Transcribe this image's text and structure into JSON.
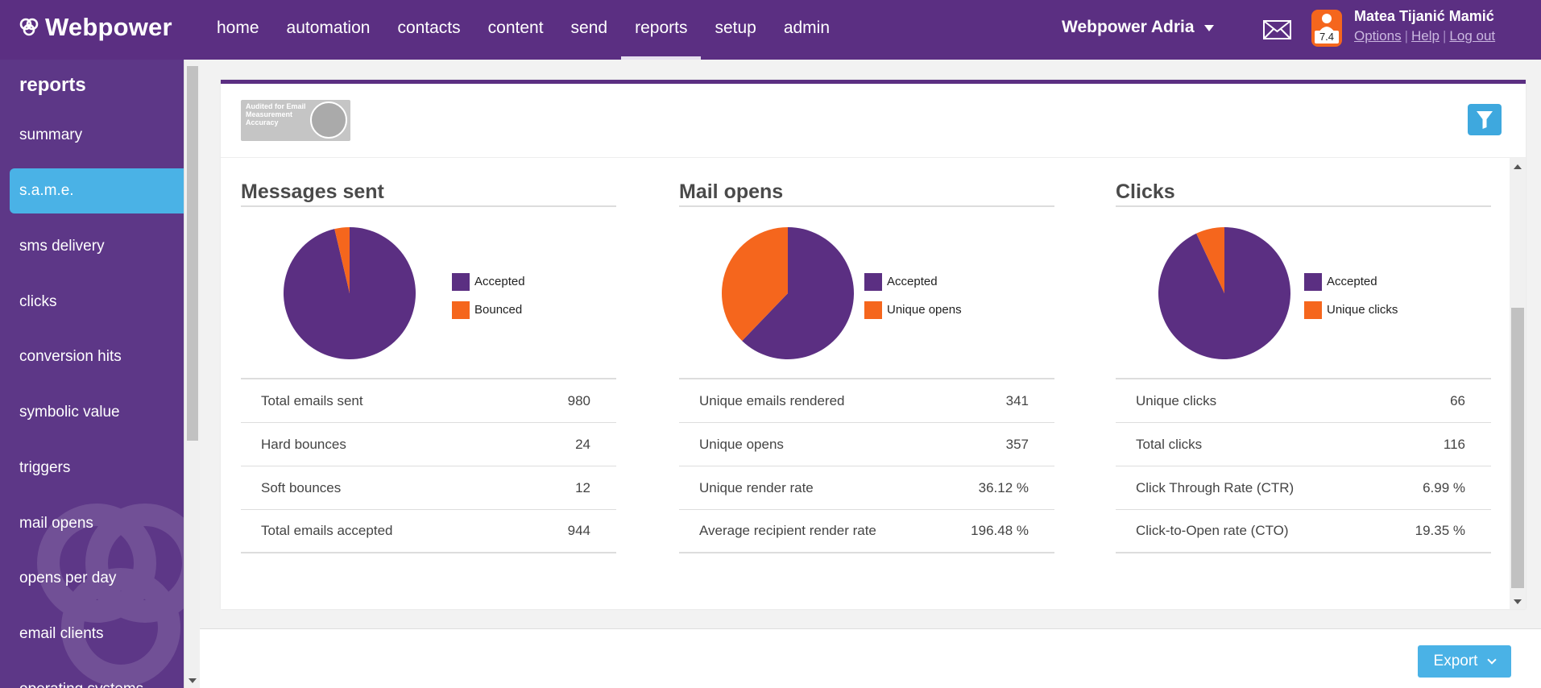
{
  "app": {
    "logo": "Webpower"
  },
  "nav": {
    "items": [
      "home",
      "automation",
      "contacts",
      "content",
      "send",
      "reports",
      "setup",
      "admin"
    ],
    "active": "reports"
  },
  "account": {
    "name": "Webpower Adria"
  },
  "user": {
    "name": "Matea Tijanić Mamić",
    "badge": "7.4",
    "links": [
      "Options",
      "Help",
      "Log out"
    ]
  },
  "sidebar": {
    "title": "reports",
    "items": [
      "summary",
      "s.a.m.e.",
      "sms delivery",
      "clicks",
      "conversion hits",
      "symbolic value",
      "triggers",
      "mail opens",
      "opens per day",
      "email clients",
      "operating systems"
    ],
    "active_index": 1
  },
  "colors": {
    "accepted": "#5b2f82",
    "secondary": "#f5661d",
    "brand": "#5b2f82",
    "accent": "#4ab2e6"
  },
  "panels": [
    {
      "title": "Messages sent",
      "legend": [
        "Accepted",
        "Bounced"
      ],
      "chart_data": {
        "type": "pie",
        "labels": [
          "Accepted",
          "Bounced"
        ],
        "values": [
          944,
          36
        ]
      },
      "stats": [
        {
          "label": "Total emails sent",
          "value": "980"
        },
        {
          "label": "Hard bounces",
          "value": "24"
        },
        {
          "label": "Soft bounces",
          "value": "12"
        },
        {
          "label": "Total emails accepted",
          "value": "944"
        }
      ]
    },
    {
      "title": "Mail opens",
      "legend": [
        "Accepted",
        "Unique opens"
      ],
      "chart_data": {
        "type": "pie",
        "labels": [
          "Accepted",
          "Unique opens"
        ],
        "values": [
          587,
          357
        ]
      },
      "stats": [
        {
          "label": "Unique emails rendered",
          "value": "341"
        },
        {
          "label": "Unique opens",
          "value": "357"
        },
        {
          "label": "Unique render rate",
          "value": "36.12 %"
        },
        {
          "label": "Average recipient render rate",
          "value": "196.48 %"
        }
      ]
    },
    {
      "title": "Clicks",
      "legend": [
        "Accepted",
        "Unique clicks"
      ],
      "chart_data": {
        "type": "pie",
        "labels": [
          "Accepted",
          "Unique clicks"
        ],
        "values": [
          878,
          66
        ]
      },
      "stats": [
        {
          "label": "Unique clicks",
          "value": "66"
        },
        {
          "label": "Total clicks",
          "value": "116"
        },
        {
          "label": "Click Through Rate (CTR)",
          "value": "6.99 %"
        },
        {
          "label": "Click-to-Open rate (CTO)",
          "value": "19.35 %"
        }
      ]
    }
  ],
  "chart_data": [
    {
      "type": "pie",
      "labels": [
        "Accepted",
        "Bounced"
      ],
      "values": [
        944,
        36
      ]
    },
    {
      "type": "pie",
      "labels": [
        "Accepted",
        "Unique opens"
      ],
      "values": [
        587,
        357
      ]
    },
    {
      "type": "pie",
      "labels": [
        "Accepted",
        "Unique clicks"
      ],
      "values": [
        878,
        66
      ]
    }
  ],
  "badge": {
    "text": "Audited for Email Measurement Accuracy"
  },
  "footer": {
    "export_label": "Export"
  }
}
